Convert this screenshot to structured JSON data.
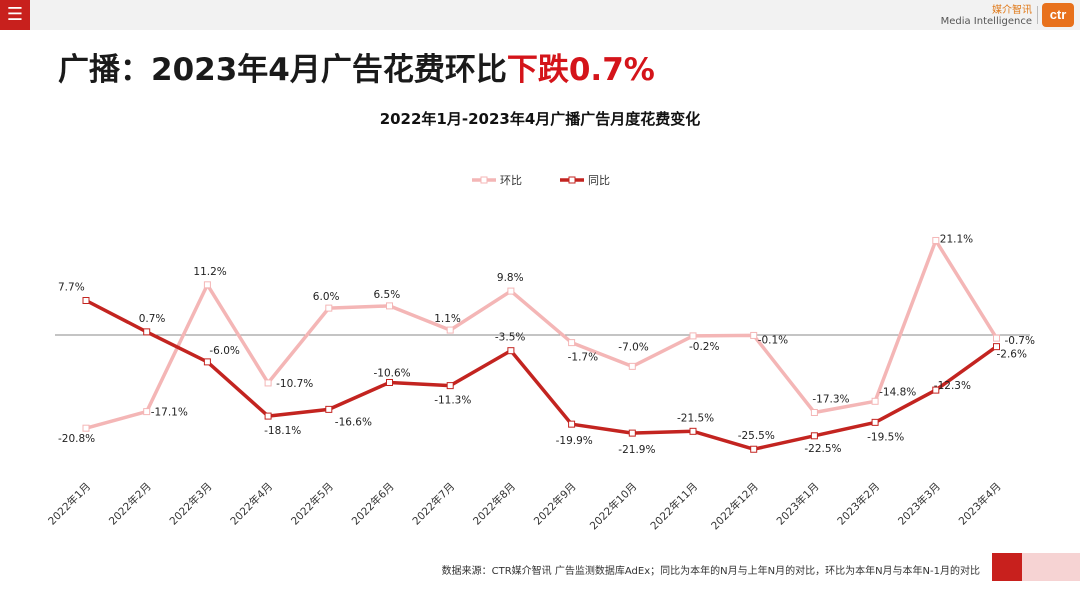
{
  "header": {
    "brand_cn": "媒介智讯",
    "brand_en": "Media Intelligence",
    "logo_text": "ctr",
    "menu_icon": "hamburger-menu-icon"
  },
  "title": {
    "prefix": "广播：2023年4月广告花费环比",
    "highlight": "下跌0.7%"
  },
  "colors": {
    "accent": "#c8201d",
    "title_highlight": "#d4141a",
    "mom_line": "#f4b6b6",
    "yoy_line": "#c32420"
  },
  "chart_data": {
    "type": "line",
    "title": "2022年1月-2023年4月广播广告月度花费变化",
    "legend_position": "top",
    "grid": false,
    "unit": "%",
    "categories": [
      "2022年1月",
      "2022年2月",
      "2022年3月",
      "2022年4月",
      "2022年5月",
      "2022年6月",
      "2022年7月",
      "2022年8月",
      "2022年9月",
      "2022年10月",
      "2022年11月",
      "2022年12月",
      "2023年1月",
      "2023年2月",
      "2023年3月",
      "2023年4月"
    ],
    "series": [
      {
        "name": "环比",
        "values": [
          -20.8,
          -17.1,
          11.2,
          -10.7,
          6.0,
          6.5,
          1.1,
          9.8,
          -1.7,
          -7.0,
          -0.2,
          -0.1,
          -17.3,
          -14.8,
          21.1,
          -0.7
        ]
      },
      {
        "name": "同比",
        "values": [
          7.7,
          0.7,
          -6.0,
          -18.1,
          -16.6,
          -10.6,
          -11.3,
          -3.5,
          -19.9,
          -21.9,
          -21.5,
          -25.5,
          -22.5,
          -19.5,
          -12.3,
          -2.6
        ]
      }
    ]
  },
  "footer": {
    "source": "数据来源：CTR媒介智讯 广告监测数据库AdEx；同比为本年的N月与上年N月的对比，环比为本年N月与本年N-1月的对比"
  }
}
